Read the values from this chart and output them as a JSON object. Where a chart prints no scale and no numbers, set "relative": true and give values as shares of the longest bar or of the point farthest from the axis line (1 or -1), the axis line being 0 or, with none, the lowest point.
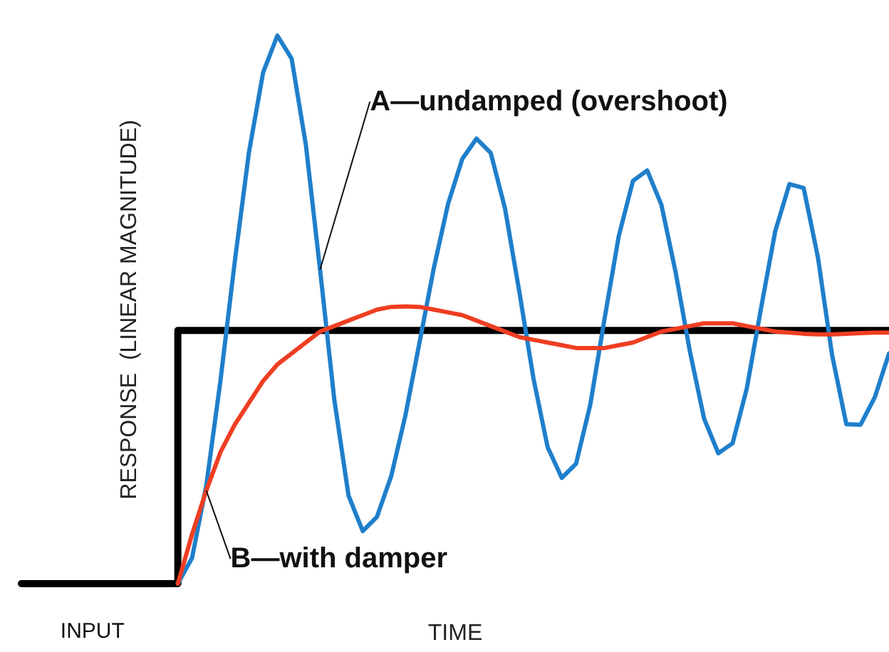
{
  "chart_data": {
    "type": "line",
    "relative": true,
    "xlabel": "TIME",
    "ylabel": "RESPONSE  (LINEAR MAGNITUDE)",
    "legend": false,
    "grid": false,
    "tick_labels": false,
    "categories": [
      null,
      null,
      null,
      null,
      null,
      null,
      null,
      null,
      null,
      null,
      null,
      null,
      null,
      null,
      null,
      null,
      null,
      null,
      null,
      null,
      null,
      null,
      null,
      null,
      null,
      null,
      null,
      null,
      null,
      null,
      null,
      null,
      null,
      null,
      null,
      null,
      null,
      null,
      null,
      null,
      null,
      null,
      null,
      null,
      null,
      null,
      null,
      null,
      null,
      null,
      null,
      null,
      null,
      null,
      null,
      null,
      null,
      null,
      null,
      null,
      null,
      null
    ],
    "series": [
      {
        "name": "INPUT",
        "type": "step",
        "color": "#000000",
        "values": [
          0,
          0,
          0,
          0,
          0,
          0,
          0,
          0,
          0,
          0,
          0,
          0.462,
          0.462,
          0.462,
          0.462,
          0.462,
          0.462,
          0.462,
          0.462,
          0.462,
          0.462,
          0.462,
          0.462,
          0.462,
          0.462,
          0.462,
          0.462,
          0.462,
          0.462,
          0.462,
          0.462,
          0.462,
          0.462,
          0.462,
          0.462,
          0.462,
          0.462,
          0.462,
          0.462,
          0.462,
          0.462,
          0.462,
          0.462,
          0.462,
          0.462,
          0.462,
          0.462,
          0.462,
          0.462,
          0.462,
          0.462,
          0.462,
          0.462,
          0.462,
          0.462,
          0.462,
          0.462,
          0.462,
          0.462,
          0.462,
          0.462,
          0.462
        ]
      },
      {
        "name": "A—undamped (overshoot)",
        "color": "#1f7fcb",
        "values": [
          null,
          null,
          null,
          null,
          null,
          null,
          null,
          null,
          null,
          null,
          null,
          0,
          0.047,
          0.179,
          0.371,
          0.587,
          0.787,
          0.933,
          1,
          0.958,
          0.801,
          0.573,
          0.336,
          0.161,
          0.096,
          0.122,
          0.196,
          0.307,
          0.441,
          0.576,
          0.693,
          0.775,
          0.812,
          0.786,
          0.685,
          0.534,
          0.375,
          0.249,
          0.193,
          0.219,
          0.327,
          0.483,
          0.634,
          0.735,
          0.754,
          0.691,
          0.568,
          0.424,
          0.301,
          0.238,
          0.256,
          0.356,
          0.502,
          0.643,
          0.729,
          0.722,
          0.596,
          0.417,
          0.291,
          0.29,
          0.34,
          0.42
        ]
      },
      {
        "name": "B—with damper",
        "color": "#ef3e22",
        "values": [
          null,
          null,
          null,
          null,
          null,
          null,
          null,
          null,
          null,
          null,
          null,
          0,
          0.09,
          0.17,
          0.24,
          0.29,
          0.33,
          0.37,
          0.4,
          0.42,
          0.44,
          0.46,
          0.47,
          0.48,
          0.49,
          0.5,
          0.505,
          0.506,
          0.505,
          0.5,
          0.495,
          0.49,
          0.48,
          0.47,
          0.46,
          0.45,
          0.445,
          0.44,
          0.435,
          0.43,
          0.43,
          0.43,
          0.435,
          0.44,
          0.45,
          0.46,
          0.465,
          0.47,
          0.475,
          0.475,
          0.475,
          0.47,
          0.465,
          0.46,
          0.458,
          0.456,
          0.455,
          0.455,
          0.456,
          0.457,
          0.458,
          0.458
        ]
      }
    ]
  }
}
